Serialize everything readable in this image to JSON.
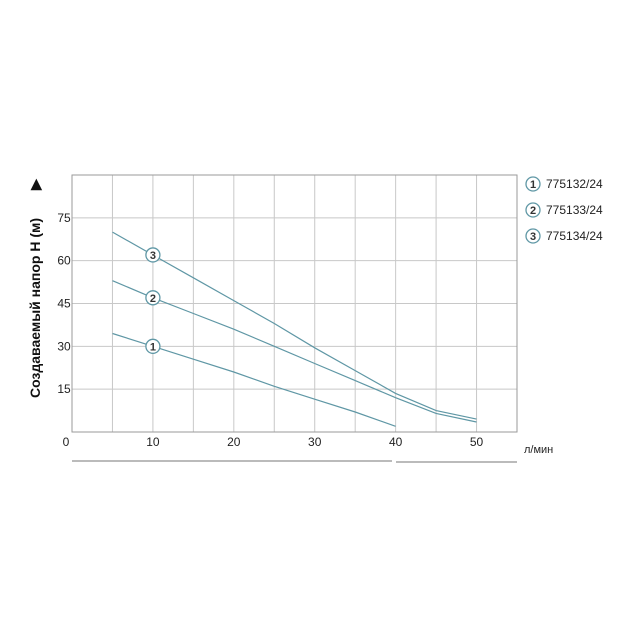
{
  "chart_data": {
    "type": "line",
    "title": "",
    "xlabel": "л/мин",
    "ylabel": "Создаваемый напор H (м)",
    "ylabel_arrow": "▶",
    "xlim": [
      0,
      55
    ],
    "ylim": [
      0,
      90
    ],
    "x_ticks": [
      0,
      10,
      20,
      30,
      40,
      50
    ],
    "y_ticks": [
      15,
      30,
      45,
      60,
      75
    ],
    "grid": true,
    "legend_position": "right",
    "series": [
      {
        "marker": "1",
        "name": "775132/24",
        "color": "#5f97a5",
        "points": [
          [
            5,
            34.5
          ],
          [
            10,
            30
          ],
          [
            15,
            25.5
          ],
          [
            20,
            21
          ],
          [
            25,
            16
          ],
          [
            30,
            11.5
          ],
          [
            35,
            7
          ],
          [
            40,
            2
          ]
        ]
      },
      {
        "marker": "2",
        "name": "775133/24",
        "color": "#5f97a5",
        "points": [
          [
            5,
            53
          ],
          [
            10,
            47
          ],
          [
            15,
            41.5
          ],
          [
            20,
            36
          ],
          [
            25,
            30
          ],
          [
            30,
            24
          ],
          [
            35,
            18
          ],
          [
            40,
            12
          ],
          [
            45,
            6.5
          ],
          [
            50,
            3.5
          ]
        ]
      },
      {
        "marker": "3",
        "name": "775134/24",
        "color": "#5f97a5",
        "points": [
          [
            5,
            70
          ],
          [
            10,
            62
          ],
          [
            15,
            54
          ],
          [
            20,
            46
          ],
          [
            25,
            38
          ],
          [
            30,
            29.5
          ],
          [
            35,
            21.5
          ],
          [
            40,
            13.5
          ],
          [
            45,
            7.5
          ],
          [
            50,
            4.5
          ]
        ]
      }
    ],
    "marker_x": 10
  }
}
